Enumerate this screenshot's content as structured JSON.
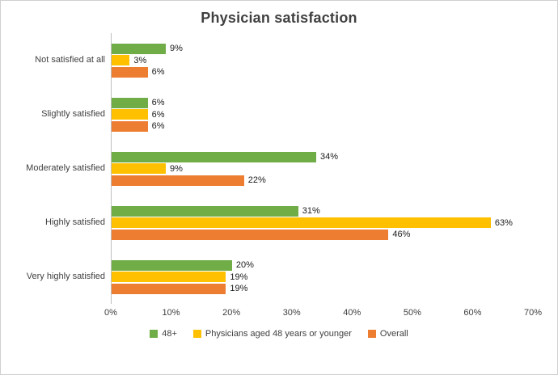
{
  "chart_data": {
    "type": "bar",
    "orientation": "horizontal",
    "title": "Physician satisfaction",
    "categories": [
      "Not satisfied at all",
      "Slightly satisfied",
      "Moderately satisfied",
      "Highly satisfied",
      "Very highly satisfied"
    ],
    "series": [
      {
        "name": "48+",
        "key": "48plus",
        "color": "#70AD47",
        "values": [
          9,
          6,
          34,
          31,
          20
        ]
      },
      {
        "name": "Physicians aged 48 years or younger",
        "key": "younger",
        "color": "#FFC000",
        "values": [
          3,
          6,
          9,
          63,
          19
        ]
      },
      {
        "name": "Overall",
        "key": "overall",
        "color": "#ED7D31",
        "values": [
          6,
          6,
          22,
          46,
          19
        ]
      }
    ],
    "data_labels": [
      "9%",
      "3%",
      "6%",
      "6%",
      "6%",
      "6%",
      "34%",
      "9%",
      "22%",
      "31%",
      "63%",
      "46%",
      "20%",
      "19%",
      "19%"
    ],
    "xlim": [
      0,
      70
    ],
    "x_ticks": [
      "0%",
      "10%",
      "20%",
      "30%",
      "40%",
      "50%",
      "60%",
      "70%"
    ],
    "xlabel": "",
    "ylabel": "",
    "grid": false,
    "legend_position": "bottom",
    "colors": {
      "title": "#404040",
      "axis_line": "#bfbfbf",
      "text": "#404040",
      "border": "#d0cece"
    }
  }
}
